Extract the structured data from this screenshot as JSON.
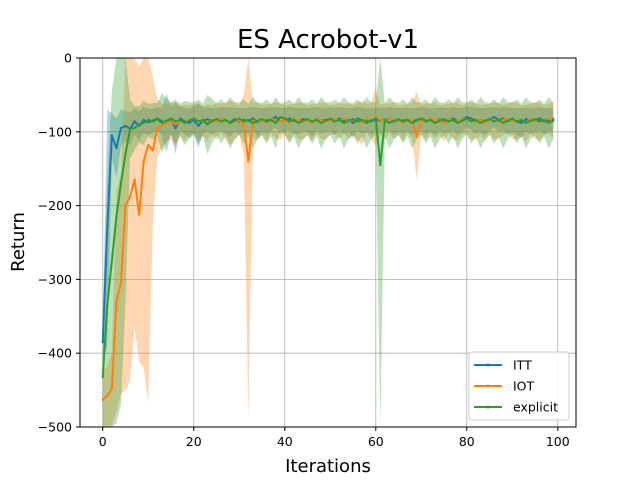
{
  "chart_data": {
    "type": "line",
    "title": "ES Acrobot-v1",
    "xlabel": "Iterations",
    "ylabel": "Return",
    "xlim": [
      -5,
      104
    ],
    "ylim": [
      -500,
      0
    ],
    "xticks": [
      0,
      20,
      40,
      60,
      80,
      100
    ],
    "yticks": [
      0,
      -100,
      -200,
      -300,
      -400,
      -500
    ],
    "xtick_labels": [
      "0",
      "20",
      "40",
      "60",
      "80",
      "100"
    ],
    "ytick_labels": [
      "0",
      "−100",
      "−200",
      "−300",
      "−400",
      "−500"
    ],
    "grid": true,
    "legend_position": "lower right",
    "series": [
      {
        "name": "ITT",
        "color": "#1f77b4",
        "x": [
          0,
          1,
          2,
          3,
          4,
          5,
          6,
          7,
          8,
          9,
          10,
          11,
          12,
          13,
          14,
          15,
          16,
          17,
          18,
          19,
          20,
          21,
          22,
          23,
          24,
          25,
          26,
          27,
          28,
          29,
          30,
          31,
          32,
          33,
          34,
          35,
          36,
          37,
          38,
          39,
          40,
          41,
          42,
          43,
          44,
          45,
          46,
          47,
          48,
          49,
          50,
          51,
          52,
          53,
          54,
          55,
          56,
          57,
          58,
          59,
          60,
          61,
          62,
          63,
          64,
          65,
          66,
          67,
          68,
          69,
          70,
          71,
          72,
          73,
          74,
          75,
          76,
          77,
          78,
          79,
          80,
          81,
          82,
          83,
          84,
          85,
          86,
          87,
          88,
          89,
          90,
          91,
          92,
          93,
          94,
          95,
          96,
          97,
          98,
          99
        ],
        "y": [
          -385,
          -230,
          -105,
          -122,
          -95,
          -92,
          -96,
          -86,
          -92,
          -84,
          -87,
          -85,
          -82,
          -86,
          -88,
          -84,
          -95,
          -82,
          -86,
          -88,
          -84,
          -92,
          -85,
          -83,
          -86,
          -84,
          -82,
          -85,
          -87,
          -83,
          -86,
          -84,
          -85,
          -82,
          -87,
          -84,
          -85,
          -83,
          -80,
          -86,
          -84,
          -82,
          -85,
          -86,
          -83,
          -84,
          -87,
          -82,
          -85,
          -84,
          -83,
          -86,
          -82,
          -85,
          -84,
          -88,
          -82,
          -85,
          -84,
          -86,
          -83,
          -85,
          -84,
          -82,
          -86,
          -84,
          -85,
          -83,
          -86,
          -84,
          -82,
          -85,
          -84,
          -86,
          -83,
          -85,
          -84,
          -82,
          -86,
          -84,
          -80,
          -82,
          -85,
          -84,
          -86,
          -83,
          -80,
          -84,
          -82,
          -85,
          -84,
          -86,
          -88,
          -83,
          -85,
          -84,
          -82,
          -86,
          -84,
          -83
        ],
        "band": [
          25,
          160,
          30,
          40,
          25,
          20,
          22,
          18,
          20,
          18,
          18,
          16,
          16,
          18,
          40,
          18,
          35,
          16,
          18,
          20,
          18,
          30,
          18,
          16,
          18,
          16,
          16,
          18,
          20,
          16,
          18,
          16,
          18,
          16,
          20,
          16,
          18,
          16,
          14,
          18,
          16,
          16,
          18,
          18,
          16,
          16,
          20,
          16,
          18,
          16,
          16,
          18,
          16,
          18,
          16,
          20,
          16,
          18,
          16,
          18,
          16,
          18,
          16,
          16,
          18,
          16,
          18,
          16,
          18,
          16,
          16,
          18,
          16,
          18,
          16,
          18,
          16,
          16,
          18,
          16,
          14,
          16,
          18,
          16,
          18,
          16,
          14,
          16,
          16,
          18,
          16,
          18,
          20,
          16,
          18,
          16,
          16,
          18,
          16,
          16
        ]
      },
      {
        "name": "IOT",
        "color": "#ff7f0e",
        "x": [
          0,
          1,
          2,
          3,
          4,
          5,
          6,
          7,
          8,
          9,
          10,
          11,
          12,
          13,
          14,
          15,
          16,
          17,
          18,
          19,
          20,
          21,
          22,
          23,
          24,
          25,
          26,
          27,
          28,
          29,
          30,
          31,
          32,
          33,
          34,
          35,
          36,
          37,
          38,
          39,
          40,
          41,
          42,
          43,
          44,
          45,
          46,
          47,
          48,
          49,
          50,
          51,
          52,
          53,
          54,
          55,
          56,
          57,
          58,
          59,
          60,
          61,
          62,
          63,
          64,
          65,
          66,
          67,
          68,
          69,
          70,
          71,
          72,
          73,
          74,
          75,
          76,
          77,
          78,
          79,
          80,
          81,
          82,
          83,
          84,
          85,
          86,
          87,
          88,
          89,
          90,
          91,
          92,
          93,
          94,
          95,
          96,
          97,
          98,
          99
        ],
        "y": [
          -463,
          -458,
          -448,
          -330,
          -305,
          -200,
          -188,
          -165,
          -212,
          -140,
          -118,
          -125,
          -95,
          -92,
          -88,
          -86,
          -90,
          -85,
          -88,
          -84,
          -82,
          -86,
          -85,
          -88,
          -84,
          -86,
          -82,
          -85,
          -88,
          -86,
          -84,
          -90,
          -140,
          -85,
          -86,
          -84,
          -88,
          -82,
          -85,
          -86,
          -84,
          -88,
          -82,
          -85,
          -86,
          -84,
          -88,
          -82,
          -85,
          -86,
          -84,
          -83,
          -85,
          -82,
          -86,
          -84,
          -85,
          -88,
          -82,
          -85,
          -80,
          -84,
          -86,
          -82,
          -85,
          -84,
          -88,
          -82,
          -85,
          -106,
          -84,
          -86,
          -82,
          -85,
          -84,
          -88,
          -82,
          -85,
          -86,
          -84,
          -82,
          -85,
          -86,
          -84,
          -88,
          -82,
          -85,
          -86,
          -84,
          -82,
          -85,
          -86,
          -84,
          -88,
          -82,
          -85,
          -86,
          -84,
          -82,
          -85
        ],
        "band": [
          40,
          40,
          50,
          150,
          150,
          250,
          250,
          200,
          200,
          280,
          350,
          100,
          40,
          30,
          25,
          25,
          30,
          20,
          25,
          20,
          20,
          25,
          20,
          25,
          20,
          25,
          20,
          25,
          30,
          25,
          20,
          40,
          350,
          25,
          25,
          20,
          25,
          20,
          25,
          25,
          20,
          25,
          20,
          25,
          25,
          20,
          25,
          20,
          25,
          25,
          20,
          20,
          25,
          20,
          25,
          20,
          25,
          30,
          20,
          25,
          40,
          20,
          25,
          20,
          25,
          20,
          25,
          20,
          25,
          60,
          20,
          25,
          20,
          25,
          20,
          25,
          20,
          25,
          25,
          20,
          20,
          25,
          25,
          20,
          25,
          20,
          25,
          25,
          20,
          20,
          25,
          25,
          20,
          25,
          20,
          25,
          25,
          20,
          20,
          25
        ]
      },
      {
        "name": "explicit",
        "color": "#2ca02c",
        "x": [
          0,
          1,
          2,
          3,
          4,
          5,
          6,
          7,
          8,
          9,
          10,
          11,
          12,
          13,
          14,
          15,
          16,
          17,
          18,
          19,
          20,
          21,
          22,
          23,
          24,
          25,
          26,
          27,
          28,
          29,
          30,
          31,
          32,
          33,
          34,
          35,
          36,
          37,
          38,
          39,
          40,
          41,
          42,
          43,
          44,
          45,
          46,
          47,
          48,
          49,
          50,
          51,
          52,
          53,
          54,
          55,
          56,
          57,
          58,
          59,
          60,
          61,
          62,
          63,
          64,
          65,
          66,
          67,
          68,
          69,
          70,
          71,
          72,
          73,
          74,
          75,
          76,
          77,
          78,
          79,
          80,
          81,
          82,
          83,
          84,
          85,
          86,
          87,
          88,
          89,
          90,
          91,
          92,
          93,
          94,
          95,
          96,
          97,
          98,
          99
        ],
        "y": [
          -432,
          -335,
          -275,
          -215,
          -170,
          -130,
          -96,
          -95,
          -90,
          -88,
          -84,
          -86,
          -83,
          -88,
          -85,
          -82,
          -86,
          -84,
          -88,
          -85,
          -82,
          -86,
          -84,
          -90,
          -85,
          -83,
          -86,
          -84,
          -88,
          -85,
          -82,
          -86,
          -84,
          -88,
          -85,
          -83,
          -86,
          -84,
          -88,
          -80,
          -82,
          -86,
          -84,
          -88,
          -85,
          -83,
          -86,
          -84,
          -88,
          -85,
          -82,
          -86,
          -84,
          -88,
          -85,
          -83,
          -86,
          -84,
          -88,
          -85,
          -82,
          -145,
          -84,
          -88,
          -85,
          -83,
          -86,
          -84,
          -88,
          -85,
          -82,
          -86,
          -84,
          -88,
          -85,
          -83,
          -86,
          -84,
          -88,
          -85,
          -82,
          -86,
          -84,
          -88,
          -85,
          -83,
          -86,
          -84,
          -88,
          -85,
          -82,
          -86,
          -84,
          -88,
          -85,
          -83,
          -86,
          -84,
          -88,
          -85
        ],
        "band": [
          80,
          170,
          230,
          280,
          300,
          200,
          40,
          30,
          25,
          30,
          22,
          25,
          22,
          40,
          30,
          22,
          30,
          22,
          30,
          25,
          22,
          30,
          22,
          40,
          30,
          22,
          30,
          22,
          35,
          25,
          22,
          30,
          22,
          35,
          25,
          22,
          30,
          22,
          35,
          18,
          22,
          30,
          22,
          35,
          25,
          22,
          30,
          22,
          35,
          25,
          22,
          30,
          22,
          35,
          25,
          22,
          30,
          22,
          35,
          25,
          22,
          360,
          22,
          35,
          25,
          22,
          30,
          22,
          35,
          25,
          22,
          30,
          22,
          35,
          25,
          22,
          30,
          22,
          35,
          25,
          22,
          30,
          22,
          35,
          25,
          22,
          30,
          22,
          35,
          25,
          22,
          30,
          22,
          35,
          25,
          22,
          30,
          22,
          35,
          25
        ]
      }
    ]
  }
}
